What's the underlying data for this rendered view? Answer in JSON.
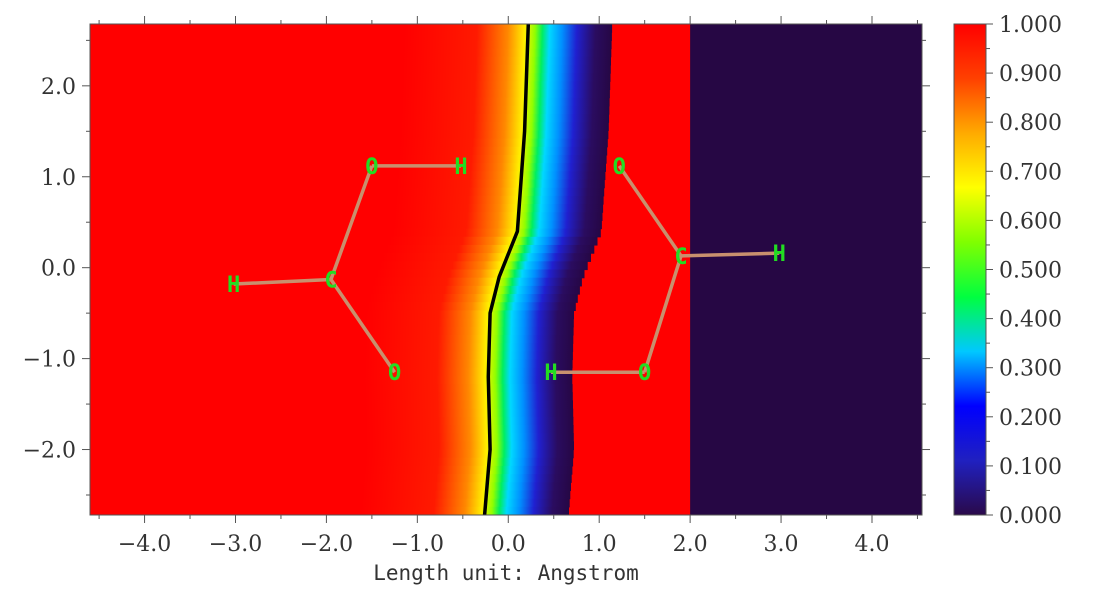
{
  "chart_data": {
    "type": "heatmap",
    "title": "",
    "xlabel": "Length unit: Angstrom",
    "ylabel": "",
    "xlim": [
      -4.6,
      4.55
    ],
    "ylim": [
      -2.72,
      2.68
    ],
    "x_ticks": [
      -4.0,
      -3.0,
      -2.0,
      -1.0,
      0.0,
      1.0,
      2.0,
      3.0,
      4.0
    ],
    "x_tick_labels": [
      "−4.0",
      "−3.0",
      "−2.0",
      "−1.0",
      "0.0",
      "1.0",
      "2.0",
      "3.0",
      "4.0"
    ],
    "y_ticks": [
      2.0,
      1.0,
      0.0,
      -1.0,
      -2.0
    ],
    "y_tick_labels": [
      "2.0",
      "1.0",
      "0.0",
      "−1.0",
      "−2.0"
    ],
    "colorbar": {
      "min": 0.0,
      "max": 1.0,
      "ticks": [
        1.0,
        0.9,
        0.8,
        0.7,
        0.6,
        0.5,
        0.4,
        0.3,
        0.2,
        0.1,
        0.0
      ],
      "tick_labels": [
        "1.000",
        "0.900",
        "0.800",
        "0.700",
        "0.600",
        "0.500",
        "0.400",
        "0.300",
        "0.200",
        "0.100",
        "0.000"
      ],
      "colormap": [
        "#2a0a4a",
        "#2020c0",
        "#0000ff",
        "#00c8ff",
        "#00ff40",
        "#80ff00",
        "#ffff00",
        "#ffaa00",
        "#ff4000",
        "#ff0000"
      ]
    },
    "contour_value": 0.5,
    "contour_line": [
      [
        0.22,
        2.68
      ],
      [
        0.18,
        1.5
      ],
      [
        0.1,
        0.4
      ],
      [
        -0.1,
        -0.1
      ],
      [
        -0.2,
        -0.5
      ],
      [
        -0.22,
        -1.2
      ],
      [
        -0.2,
        -2.0
      ],
      [
        -0.26,
        -2.72
      ]
    ],
    "atoms": [
      {
        "label": "O",
        "x": -1.5,
        "y": 1.12
      },
      {
        "label": "H",
        "x": -0.52,
        "y": 1.12
      },
      {
        "label": "C",
        "x": -1.95,
        "y": -0.13
      },
      {
        "label": "H",
        "x": -3.02,
        "y": -0.18
      },
      {
        "label": "O",
        "x": -1.25,
        "y": -1.15
      },
      {
        "label": "O",
        "x": 1.22,
        "y": 1.12
      },
      {
        "label": "C",
        "x": 1.9,
        "y": 0.13
      },
      {
        "label": "H",
        "x": 2.98,
        "y": 0.16
      },
      {
        "label": "O",
        "x": 1.5,
        "y": -1.15
      },
      {
        "label": "H",
        "x": 0.47,
        "y": -1.15
      }
    ],
    "bonds": [
      [
        0,
        1
      ],
      [
        0,
        2
      ],
      [
        2,
        3
      ],
      [
        2,
        4
      ],
      [
        5,
        6
      ],
      [
        6,
        7
      ],
      [
        6,
        8
      ],
      [
        8,
        9
      ]
    ],
    "colors": {
      "bond": "#c8906e",
      "atom_label": "#22dd22",
      "contour": "#000000",
      "axes": "#555555",
      "text": "#333333"
    }
  }
}
